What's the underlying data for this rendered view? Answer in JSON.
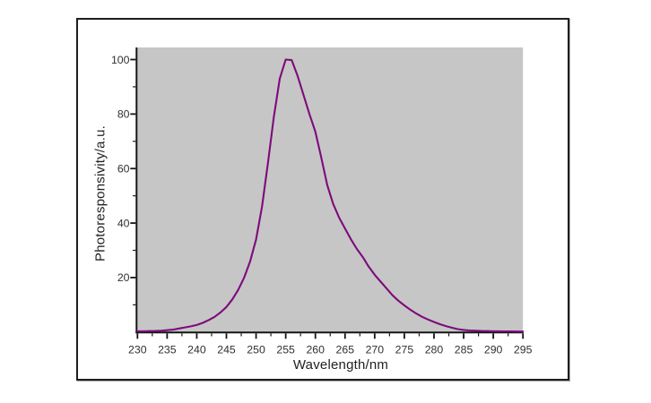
{
  "figure": {
    "background_color": "#ffffff",
    "frame_border_color": "#1e1e1e",
    "plot_background_color": "#c6c6c6",
    "axis_color": "#151515",
    "tick_label_color": "#2f2f36",
    "curve_color": "#7d0b7d"
  },
  "chart_data": {
    "type": "line",
    "title": "",
    "xlabel": "Wavelength/nm",
    "ylabel": "Photoresponsivity/a.u.",
    "xlim": [
      230,
      295
    ],
    "ylim": [
      0,
      105
    ],
    "grid": false,
    "legend": "none",
    "x_major_ticks": [
      230,
      235,
      240,
      245,
      250,
      255,
      260,
      265,
      270,
      275,
      280,
      285,
      290,
      295
    ],
    "x_minor_step": 2.5,
    "y_major_ticks": [
      20,
      40,
      60,
      80,
      100
    ],
    "y_minor_step": 10,
    "peak": {
      "wavelength_nm": 255.5,
      "value": 100
    },
    "series": [
      {
        "name": "photoresponsivity",
        "x": [
          230,
          231,
          232,
          233,
          234,
          235,
          236,
          237,
          238,
          239,
          240,
          241,
          242,
          243,
          244,
          245,
          246,
          247,
          248,
          249,
          250,
          251,
          252,
          253,
          254,
          255,
          256,
          257,
          258,
          259,
          260,
          261,
          262,
          263,
          264,
          265,
          266,
          267,
          268,
          269,
          270,
          271,
          272,
          273,
          274,
          275,
          276,
          277,
          278,
          279,
          280,
          281,
          282,
          283,
          284,
          285,
          286,
          287,
          288,
          289,
          290,
          291,
          292,
          293,
          294,
          295
        ],
        "y": [
          0.3,
          0.3,
          0.35,
          0.4,
          0.5,
          0.7,
          0.9,
          1.3,
          1.7,
          2.1,
          2.6,
          3.4,
          4.4,
          5.6,
          7.2,
          9.2,
          12,
          15.5,
          20,
          26,
          34,
          46,
          62,
          79,
          93,
          100,
          99.8,
          94,
          87,
          80,
          73.5,
          64,
          54,
          47,
          42,
          38,
          34,
          30.5,
          27.5,
          24,
          21,
          18.5,
          16,
          13.5,
          11.5,
          9.8,
          8.2,
          6.8,
          5.6,
          4.6,
          3.7,
          2.9,
          2.2,
          1.6,
          1.1,
          0.8,
          0.6,
          0.5,
          0.4,
          0.35,
          0.3,
          0.3,
          0.25,
          0.25,
          0.2,
          0.2
        ]
      }
    ]
  }
}
